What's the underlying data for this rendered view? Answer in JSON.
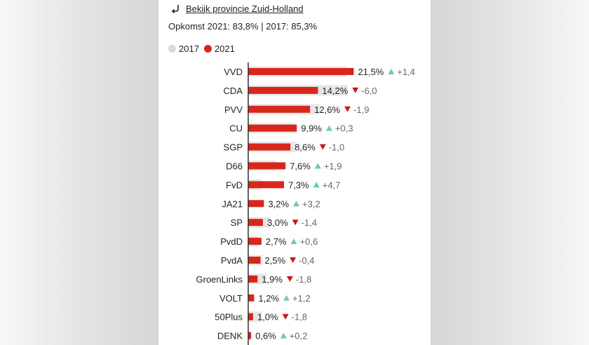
{
  "header": {
    "link_label": "Bekijk provincie Zuid-Holland",
    "link_icon": "return-arrow-icon",
    "turnout_text": "Opkomst 2021: 83,8% | 2017: 85,3%"
  },
  "legend": [
    {
      "label": "2017",
      "color": "#d9d9d9"
    },
    {
      "label": "2021",
      "color": "#d9261c"
    }
  ],
  "colors": {
    "bar_2021": "#d9261c",
    "bar_2017": "#e6e6e6",
    "up": "#6ccbb0",
    "down": "#c8161d"
  },
  "chart_data": {
    "type": "bar",
    "orientation": "horizontal",
    "title": "",
    "xlabel": "",
    "ylabel": "",
    "categories": [
      "VVD",
      "CDA",
      "PVV",
      "CU",
      "SGP",
      "D66",
      "FvD",
      "JA21",
      "SP",
      "PvdD",
      "PvdA",
      "GroenLinks",
      "VOLT",
      "50Plus",
      "DENK"
    ],
    "series": [
      {
        "name": "2017",
        "values": [
          20.1,
          20.2,
          14.5,
          9.6,
          9.6,
          5.7,
          2.6,
          0,
          4.4,
          2.1,
          2.9,
          3.7,
          0,
          2.8,
          0.4
        ]
      },
      {
        "name": "2021",
        "values": [
          21.5,
          14.2,
          12.6,
          9.9,
          8.6,
          7.6,
          7.3,
          3.2,
          3.0,
          2.7,
          2.5,
          1.9,
          1.2,
          1.0,
          0.6
        ]
      }
    ],
    "value_labels": [
      "21,5%",
      "14,2%",
      "12,6%",
      "9,9%",
      "8,6%",
      "7,6%",
      "7,3%",
      "3,2%",
      "3,0%",
      "2,7%",
      "2,5%",
      "1,9%",
      "1,2%",
      "1,0%",
      "0,6%"
    ],
    "change_labels": [
      "+1,4",
      "-6,0",
      "-1,9",
      "+0,3",
      "-1,0",
      "+1,9",
      "+4,7",
      "+3,2",
      "-1,4",
      "+0,6",
      "-0,4",
      "-1,8",
      "+1,2",
      "-1,8",
      "+0,2"
    ],
    "change_direction": [
      "up",
      "down",
      "down",
      "up",
      "down",
      "up",
      "up",
      "up",
      "down",
      "up",
      "down",
      "down",
      "up",
      "down",
      "up"
    ],
    "legend_position": "top-left",
    "grid": false
  }
}
